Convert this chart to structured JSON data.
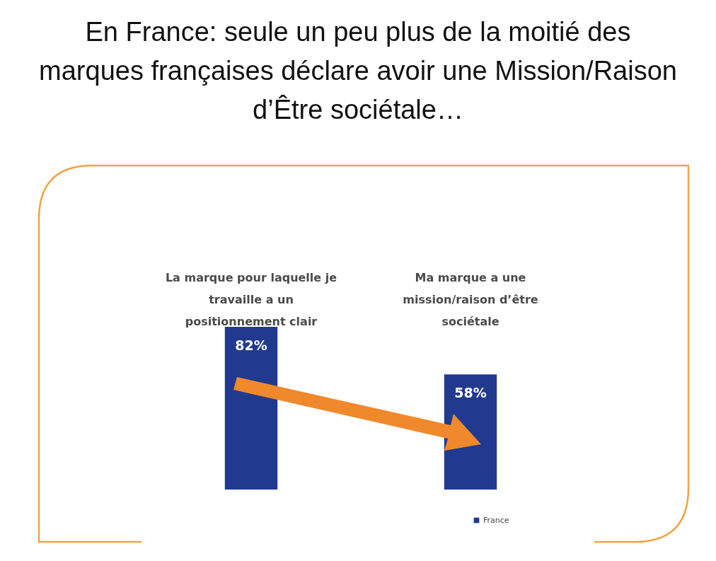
{
  "chart_data": {
    "type": "bar",
    "title": "En France: seule un peu plus de la moitié des marques françaises déclare avoir une Mission/Raison d’Être sociétale…",
    "categories": [
      "La marque pour laquelle je travaille a un positionnement clair",
      "Ma marque a une mission/raison d’être sociétale"
    ],
    "series": [
      {
        "name": "France",
        "color": "#213a8f",
        "values": [
          82,
          58
        ],
        "value_labels": [
          "82%",
          "58%"
        ]
      }
    ],
    "legend": "bottom right"
  }
}
